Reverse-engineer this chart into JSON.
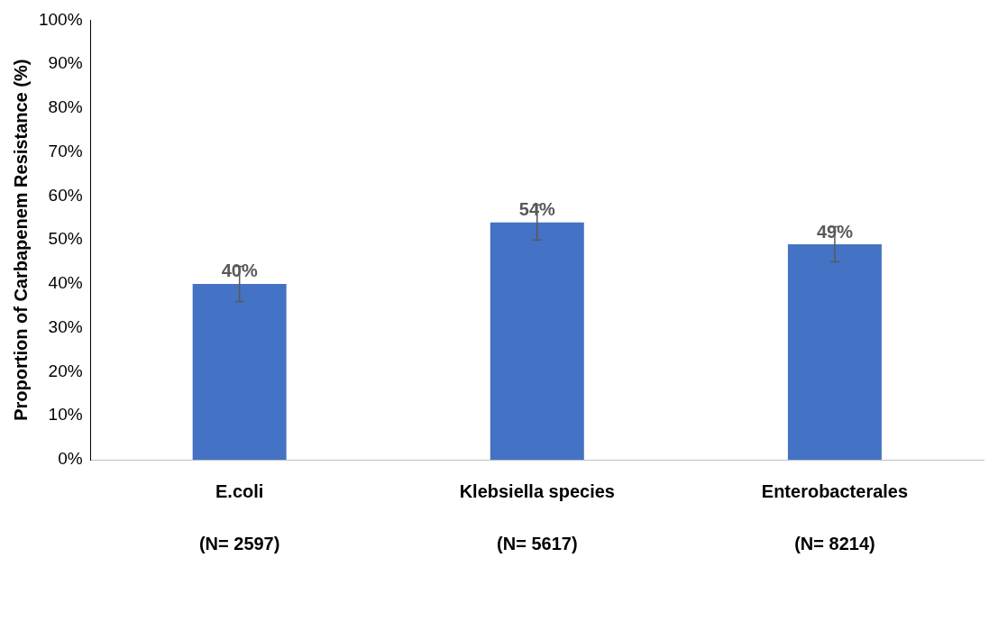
{
  "chart_data": {
    "type": "bar",
    "ylabel": "Proportion of Carbapenem Resistance (%)",
    "categories": [
      "E.coli",
      "Klebsiella species",
      "Enterobacterales"
    ],
    "values": [
      40,
      54,
      49
    ],
    "color": "#4472c4",
    "errors": [
      [
        36,
        44
      ],
      [
        50,
        58
      ],
      [
        45,
        53
      ]
    ],
    "value_labels": [
      "40%",
      "54%",
      "49%"
    ],
    "ylim": [
      0,
      100
    ],
    "yticks": [
      {
        "value": 0,
        "label": "0%"
      },
      {
        "value": 10,
        "label": "10%"
      },
      {
        "value": 20,
        "label": "20%"
      },
      {
        "value": 30,
        "label": "30%"
      },
      {
        "value": 40,
        "label": "40%"
      },
      {
        "value": 50,
        "label": "50%"
      },
      {
        "value": 60,
        "label": "60%"
      },
      {
        "value": 70,
        "label": "70%"
      },
      {
        "value": 80,
        "label": "80%"
      },
      {
        "value": 90,
        "label": "90%"
      },
      {
        "value": 100,
        "label": "100%"
      }
    ],
    "annotations": [
      "(N= 2597)",
      "(N= 5617)",
      "(N= 8214)"
    ],
    "grid": false,
    "legend": false
  }
}
